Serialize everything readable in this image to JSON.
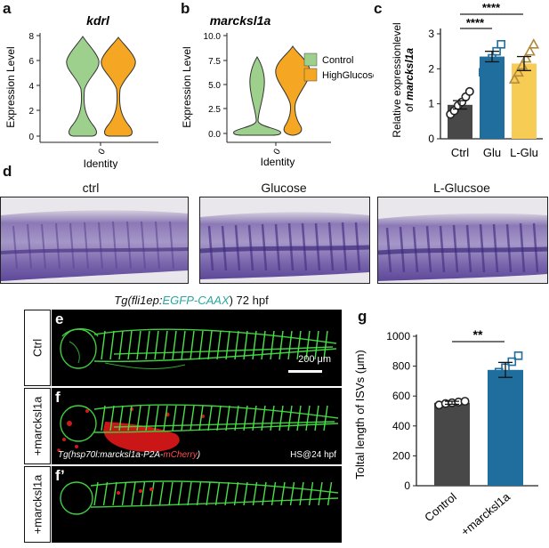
{
  "panels": {
    "a": "a",
    "b": "b",
    "c": "c",
    "d": "d",
    "e": "e",
    "f": "f",
    "f2": "f’",
    "g": "g"
  },
  "violin_a": {
    "title": "kdrl",
    "ylabel": "Expression Level",
    "xlabel": "Identity",
    "xtick": "0",
    "yticks": [
      "0",
      "2",
      "4",
      "6",
      "8"
    ]
  },
  "violin_b": {
    "title": "marcksl1a",
    "ylabel": "Expression Level",
    "xlabel": "Identity",
    "xtick": "0",
    "yticks": [
      "0.0",
      "2.5",
      "5.0",
      "7.5",
      "10.0"
    ]
  },
  "legend": {
    "items": [
      {
        "label": "Control",
        "color": "#9ed08d"
      },
      {
        "label": "HighGlucose",
        "color": "#f5a623"
      }
    ]
  },
  "chart_c": {
    "ylabel_line1": "Relative expressionlevel",
    "ylabel_line2_prefix": "of ",
    "ylabel_line2_gene": "marcksl1a",
    "categories": [
      "Ctrl",
      "Glu",
      "L-Glu"
    ],
    "sig1": "****",
    "sig2": "****",
    "yticks": [
      "0",
      "1",
      "2",
      "3"
    ]
  },
  "chart_data": [
    {
      "type": "bar",
      "categories": [
        "Ctrl",
        "Glu",
        "L-Glu"
      ],
      "values": [
        0.97,
        2.35,
        2.15
      ],
      "errors": [
        0.12,
        0.15,
        0.2
      ],
      "points": [
        [
          0.7,
          0.8,
          0.95,
          1.05,
          1.2,
          1.35
        ],
        [
          1.9,
          2.2,
          2.3,
          2.5,
          2.7
        ],
        [
          1.7,
          1.9,
          2.1,
          2.3,
          2.5,
          2.7
        ]
      ],
      "ylabel": "Relative expressionlevel of marcksl1a",
      "ylim": [
        0,
        3
      ],
      "colors": [
        "#484848",
        "#1f6e9e",
        "#f7cc55"
      ]
    },
    {
      "type": "bar",
      "categories": [
        "Control",
        "+marcksl1a"
      ],
      "values": [
        555,
        775
      ],
      "errors": [
        10,
        50
      ],
      "points": [
        [
          540,
          550,
          555,
          560,
          565
        ],
        [
          680,
          760,
          790,
          830,
          870
        ]
      ],
      "ylabel": "Toltal length of ISVs (μm)",
      "ylim": [
        0,
        1000
      ],
      "colors": [
        "#484848",
        "#1f6e9e"
      ]
    }
  ],
  "chart_g": {
    "ylabel": "Toltal length of ISVs (μm)",
    "categories": [
      "Control",
      "+marcksl1a"
    ],
    "sig": "**",
    "yticks": [
      "0",
      "200",
      "400",
      "600",
      "800",
      "1000"
    ]
  },
  "lanes": {
    "labels": [
      "ctrl",
      "Glucose",
      "L-Glucsoe"
    ]
  },
  "embryo": {
    "title_prefix": "Tg(fli1ep:",
    "title_green": "EGFP-CAAX",
    "title_suffix": ") 72 hpf",
    "side_labels": [
      "Ctrl",
      "+marcksl1a",
      "+marcksl1a"
    ],
    "scale_bar": "200 μm",
    "transgene_prefix": "Tg(hsp70l:marcksl1a-P2A-",
    "transgene_red": "mCherry",
    "transgene_suffix": ")",
    "heat_shock": "HS@24 hpf"
  }
}
